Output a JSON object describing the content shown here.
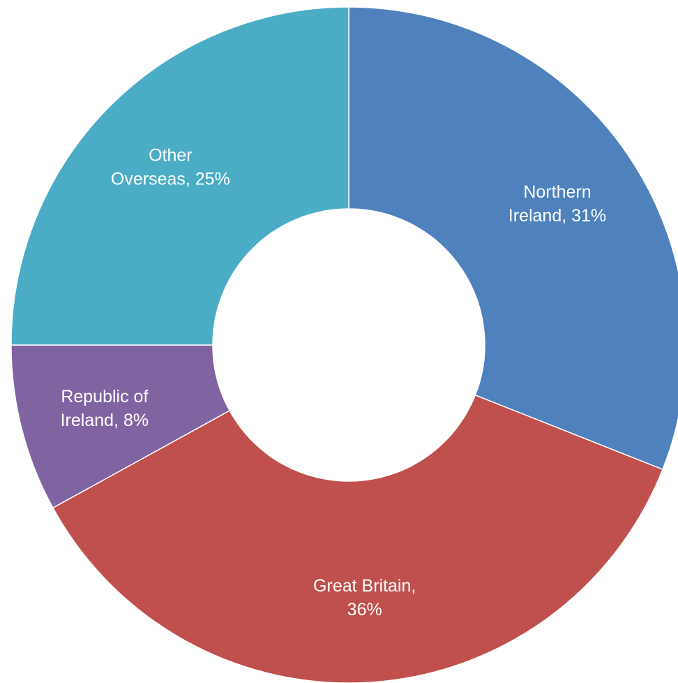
{
  "chart_data": {
    "type": "pie",
    "style": "donut",
    "slices": [
      {
        "label_lines": [
          "Northern",
          "Ireland, 31%"
        ],
        "category": "Northern Ireland",
        "value": 31,
        "color": "#4F81BD"
      },
      {
        "label_lines": [
          "Great Britain,",
          "36%"
        ],
        "category": "Great Britain",
        "value": 36,
        "color": "#C0504D"
      },
      {
        "label_lines": [
          "Republic of",
          "Ireland, 8%"
        ],
        "category": "Republic of Ireland",
        "value": 8,
        "color": "#8064A2"
      },
      {
        "label_lines": [
          "Other",
          "Overseas, 25%"
        ],
        "category": "Other Overseas",
        "value": 25,
        "color": "#4BACC6"
      }
    ],
    "start": "12 o'clock",
    "direction": "clockwise",
    "legend": "none",
    "title": ""
  }
}
